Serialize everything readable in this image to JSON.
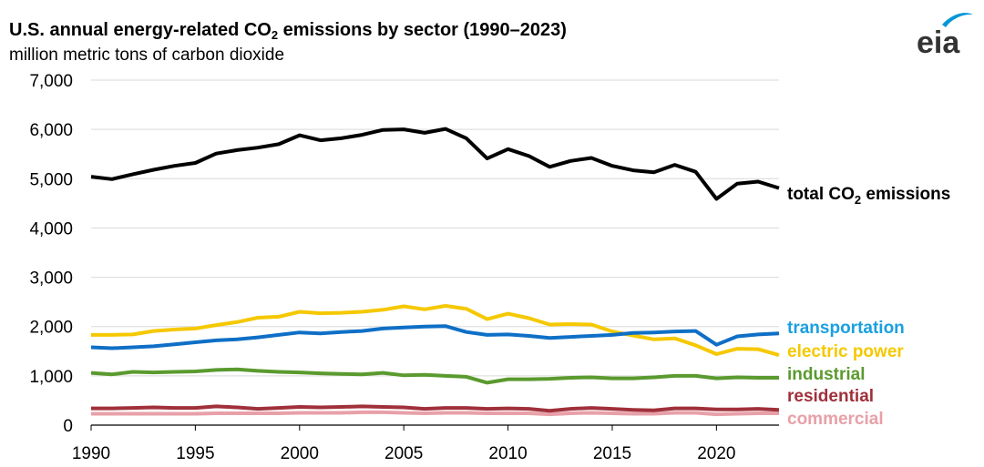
{
  "header": {
    "title_main": "U.S. annual energy-related CO",
    "title_sub": "2",
    "title_rest": " emissions by sector (1990–2023)",
    "subtitle": "million metric tons of carbon dioxide"
  },
  "logo": {
    "text": "eia",
    "colors": {
      "text": "#333333",
      "swoosh": "#0096d7"
    }
  },
  "chart_data": {
    "type": "line",
    "title": "U.S. annual energy-related CO2 emissions by sector (1990–2023)",
    "ylabel": "million metric tons of carbon dioxide",
    "xlabel": "",
    "xlim": [
      1990,
      2023
    ],
    "ylim": [
      0,
      7000
    ],
    "x_ticks": [
      1990,
      1995,
      2000,
      2005,
      2010,
      2015,
      2020
    ],
    "x_tick_labels": [
      "1990",
      "1995",
      "2000",
      "2005",
      "2010",
      "2015",
      "2020"
    ],
    "y_ticks": [
      0,
      1000,
      2000,
      3000,
      4000,
      5000,
      6000,
      7000
    ],
    "y_tick_labels": [
      "0",
      "1,000",
      "2,000",
      "3,000",
      "4,000",
      "5,000",
      "6,000",
      "7,000"
    ],
    "grid": "horizontal",
    "x": [
      1990,
      1991,
      1992,
      1993,
      1994,
      1995,
      1996,
      1997,
      1998,
      1999,
      2000,
      2001,
      2002,
      2003,
      2004,
      2005,
      2006,
      2007,
      2008,
      2009,
      2010,
      2011,
      2012,
      2013,
      2014,
      2015,
      2016,
      2017,
      2018,
      2019,
      2020,
      2021,
      2022,
      2023
    ],
    "series": [
      {
        "key": "total",
        "name": "total CO2 emissions",
        "label_main": "total CO",
        "label_sub": "2",
        "label_rest": " emissions",
        "color": "#000000",
        "label_color": "#000000",
        "values": [
          5040,
          4990,
          5090,
          5180,
          5260,
          5320,
          5510,
          5580,
          5630,
          5700,
          5880,
          5780,
          5820,
          5890,
          5990,
          6000,
          5930,
          6010,
          5820,
          5410,
          5600,
          5460,
          5240,
          5360,
          5420,
          5260,
          5170,
          5130,
          5280,
          5140,
          4590,
          4900,
          4940,
          4810
        ]
      },
      {
        "key": "transportation",
        "name": "transportation",
        "color": "#0f6fc6",
        "label_color": "#1aa0e0",
        "values": [
          1580,
          1560,
          1580,
          1600,
          1640,
          1680,
          1720,
          1740,
          1780,
          1830,
          1880,
          1860,
          1890,
          1910,
          1960,
          1980,
          2000,
          2010,
          1890,
          1830,
          1840,
          1810,
          1770,
          1790,
          1810,
          1830,
          1870,
          1880,
          1900,
          1910,
          1630,
          1800,
          1840,
          1860
        ]
      },
      {
        "key": "electric_power",
        "name": "electric power",
        "color": "#f5c800",
        "label_color": "#f5c800",
        "values": [
          1830,
          1830,
          1840,
          1910,
          1940,
          1960,
          2030,
          2090,
          2180,
          2200,
          2300,
          2270,
          2280,
          2300,
          2340,
          2410,
          2350,
          2420,
          2360,
          2150,
          2260,
          2170,
          2040,
          2050,
          2040,
          1900,
          1820,
          1740,
          1760,
          1620,
          1440,
          1550,
          1540,
          1420
        ]
      },
      {
        "key": "industrial",
        "name": "industrial",
        "color": "#5a9a2e",
        "label_color": "#5a9a2e",
        "values": [
          1060,
          1030,
          1080,
          1070,
          1080,
          1090,
          1120,
          1130,
          1100,
          1080,
          1070,
          1050,
          1040,
          1030,
          1060,
          1010,
          1020,
          1000,
          980,
          860,
          930,
          930,
          940,
          960,
          970,
          950,
          950,
          970,
          1000,
          1000,
          950,
          970,
          960,
          960
        ]
      },
      {
        "key": "residential",
        "name": "residential",
        "color": "#a0303a",
        "label_color": "#a0303a",
        "values": [
          340,
          340,
          350,
          360,
          350,
          350,
          380,
          360,
          330,
          350,
          370,
          360,
          370,
          380,
          370,
          360,
          330,
          350,
          350,
          330,
          340,
          330,
          290,
          330,
          350,
          330,
          310,
          300,
          340,
          340,
          320,
          320,
          330,
          310
        ]
      },
      {
        "key": "commercial",
        "name": "commercial",
        "color": "#e8a0a8",
        "label_color": "#e8a0a8",
        "values": [
          230,
          230,
          230,
          230,
          230,
          230,
          240,
          240,
          240,
          240,
          250,
          250,
          250,
          260,
          260,
          250,
          240,
          250,
          250,
          240,
          240,
          240,
          220,
          240,
          250,
          240,
          230,
          230,
          250,
          250,
          220,
          230,
          240,
          240
        ]
      }
    ]
  }
}
